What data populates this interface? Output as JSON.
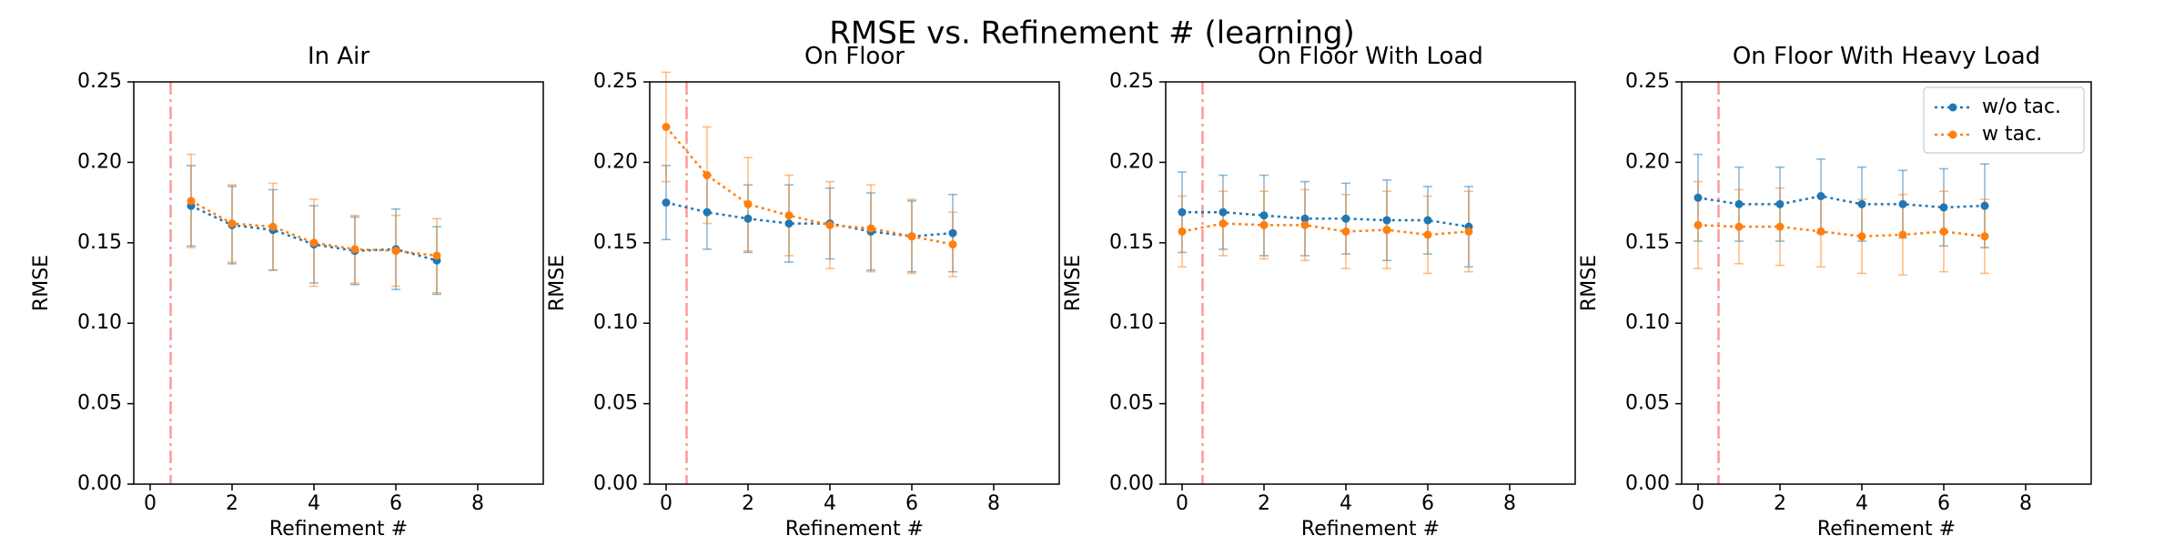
{
  "figure": {
    "title": "RMSE vs. Refinement # (learning)",
    "colors": {
      "wo": "#1f77b4",
      "w": "#ff7f0e",
      "vline": "#ff9999"
    },
    "legend": {
      "location": "upper right",
      "panel": 3,
      "entries": [
        "w/o tac.",
        "w tac."
      ]
    }
  },
  "chart_data": [
    {
      "type": "line",
      "title": "In Air",
      "xlabel": "Refinement #",
      "ylabel": "RMSE",
      "xlim": [
        -0.4,
        9.6
      ],
      "ylim": [
        0.0,
        0.25
      ],
      "xticks": [
        "0",
        "2",
        "4",
        "6",
        "8"
      ],
      "yticks": [
        "0.00",
        "0.05",
        "0.10",
        "0.15",
        "0.20",
        "0.25"
      ],
      "vline_x": 0.5,
      "series": [
        {
          "name": "w/o tac.",
          "x": [
            1,
            2,
            3,
            4,
            5,
            6,
            7
          ],
          "values": [
            0.173,
            0.161,
            0.158,
            0.149,
            0.145,
            0.146,
            0.139
          ],
          "err": [
            0.025,
            0.024,
            0.025,
            0.024,
            0.021,
            0.025,
            0.021
          ]
        },
        {
          "name": "w tac.",
          "x": [
            1,
            2,
            3,
            4,
            5,
            6,
            7
          ],
          "values": [
            0.176,
            0.162,
            0.16,
            0.15,
            0.146,
            0.145,
            0.142
          ],
          "err": [
            0.029,
            0.024,
            0.027,
            0.027,
            0.021,
            0.022,
            0.023
          ]
        }
      ]
    },
    {
      "type": "line",
      "title": "On Floor",
      "xlabel": "Refinement #",
      "ylabel": "RMSE",
      "xlim": [
        -0.4,
        9.6
      ],
      "ylim": [
        0.0,
        0.25
      ],
      "xticks": [
        "0",
        "2",
        "4",
        "6",
        "8"
      ],
      "yticks": [
        "0.00",
        "0.05",
        "0.10",
        "0.15",
        "0.20",
        "0.25"
      ],
      "vline_x": 0.5,
      "series": [
        {
          "name": "w/o tac.",
          "x": [
            0,
            1,
            2,
            3,
            4,
            5,
            6,
            7
          ],
          "values": [
            0.175,
            0.169,
            0.165,
            0.162,
            0.162,
            0.157,
            0.154,
            0.156
          ],
          "err": [
            0.023,
            0.023,
            0.021,
            0.024,
            0.022,
            0.024,
            0.022,
            0.024
          ]
        },
        {
          "name": "w tac.",
          "x": [
            0,
            1,
            2,
            3,
            4,
            5,
            6,
            7
          ],
          "values": [
            0.222,
            0.192,
            0.174,
            0.167,
            0.161,
            0.159,
            0.154,
            0.149
          ],
          "err": [
            0.034,
            0.03,
            0.029,
            0.025,
            0.027,
            0.027,
            0.023,
            0.02
          ]
        }
      ]
    },
    {
      "type": "line",
      "title": "On Floor With Load",
      "xlabel": "Refinement #",
      "ylabel": "RMSE",
      "xlim": [
        -0.4,
        9.6
      ],
      "ylim": [
        0.0,
        0.25
      ],
      "xticks": [
        "0",
        "2",
        "4",
        "6",
        "8"
      ],
      "yticks": [
        "0.00",
        "0.05",
        "0.10",
        "0.15",
        "0.20",
        "0.25"
      ],
      "vline_x": 0.5,
      "series": [
        {
          "name": "w/o tac.",
          "x": [
            0,
            1,
            2,
            3,
            4,
            5,
            6,
            7
          ],
          "values": [
            0.169,
            0.169,
            0.167,
            0.165,
            0.165,
            0.164,
            0.164,
            0.16
          ],
          "err": [
            0.025,
            0.023,
            0.025,
            0.023,
            0.022,
            0.025,
            0.021,
            0.025
          ]
        },
        {
          "name": "w tac.",
          "x": [
            0,
            1,
            2,
            3,
            4,
            5,
            6,
            7
          ],
          "values": [
            0.157,
            0.162,
            0.161,
            0.161,
            0.157,
            0.158,
            0.155,
            0.157
          ],
          "err": [
            0.022,
            0.02,
            0.021,
            0.022,
            0.023,
            0.024,
            0.024,
            0.025
          ]
        }
      ]
    },
    {
      "type": "line",
      "title": "On Floor With Heavy Load",
      "xlabel": "Refinement #",
      "ylabel": "RMSE",
      "xlim": [
        -0.4,
        9.6
      ],
      "ylim": [
        0.0,
        0.25
      ],
      "xticks": [
        "0",
        "2",
        "4",
        "6",
        "8"
      ],
      "yticks": [
        "0.00",
        "0.05",
        "0.10",
        "0.15",
        "0.20",
        "0.25"
      ],
      "vline_x": 0.5,
      "series": [
        {
          "name": "w/o tac.",
          "x": [
            0,
            1,
            2,
            3,
            4,
            5,
            6,
            7
          ],
          "values": [
            0.178,
            0.174,
            0.174,
            0.179,
            0.174,
            0.174,
            0.172,
            0.173
          ],
          "err": [
            0.027,
            0.023,
            0.023,
            0.023,
            0.023,
            0.021,
            0.024,
            0.026
          ]
        },
        {
          "name": "w tac.",
          "x": [
            0,
            1,
            2,
            3,
            4,
            5,
            6,
            7
          ],
          "values": [
            0.161,
            0.16,
            0.16,
            0.157,
            0.154,
            0.155,
            0.157,
            0.154
          ],
          "err": [
            0.027,
            0.023,
            0.024,
            0.022,
            0.023,
            0.025,
            0.025,
            0.023
          ]
        }
      ]
    }
  ]
}
